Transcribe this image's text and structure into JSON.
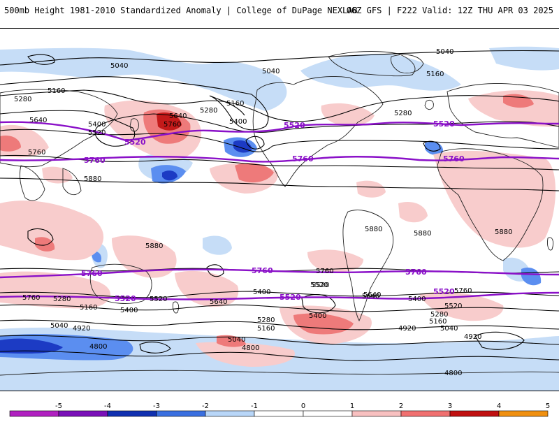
{
  "header": {
    "title_left": "500mb Height 1981-2010 Standardized Anomaly | College of DuPage NEXLAB",
    "title_right": "06Z GFS | F222 Valid: 12Z THU APR 03 2025"
  },
  "contours": {
    "black_labels": [
      "5040",
      "5040",
      "5040",
      "5160",
      "5160",
      "5160",
      "5280",
      "5280",
      "5280",
      "5400",
      "5400",
      "5520",
      "5640",
      "5640",
      "5760",
      "5760",
      "5880",
      "5880",
      "5880",
      "5880",
      "5880",
      "5760",
      "5640",
      "5520",
      "5400",
      "5280",
      "5160",
      "5040",
      "4920",
      "4800",
      "5760",
      "5640",
      "5520",
      "5400",
      "5280",
      "5160",
      "5040",
      "4920",
      "4800",
      "5400",
      "5520",
      "5640",
      "5760",
      "4920",
      "5040",
      "5160",
      "5280",
      "5400",
      "5520",
      "4800"
    ],
    "purple_labels": [
      "5520",
      "5760",
      "5520",
      "5760",
      "5520",
      "5760",
      "5760",
      "5520",
      "5760",
      "5520",
      "5520",
      "5760"
    ]
  },
  "colorbar": {
    "ticks": [
      "-5",
      "-4",
      "-3",
      "-2",
      "-1",
      "0",
      "1",
      "2",
      "3",
      "4",
      "5"
    ],
    "colors": [
      "#b020c0",
      "#7a10b8",
      "#1030b0",
      "#3a6fe0",
      "#b8d6f8",
      "#ffffff",
      "#ffffff",
      "#f8c0c0",
      "#f07070",
      "#c01010",
      "#f09010"
    ]
  },
  "map": {
    "colors": {
      "neg_light": "#c6ddf7",
      "neg_mid": "#5b8ef0",
      "neg_dark": "#1c3bc4",
      "pos_light": "#f8cccc",
      "pos_mid": "#ee7a7a",
      "pos_dark": "#c41a1a",
      "contour": "#000000",
      "contour_purple": "#8a10c8",
      "coast": "#222222"
    }
  }
}
